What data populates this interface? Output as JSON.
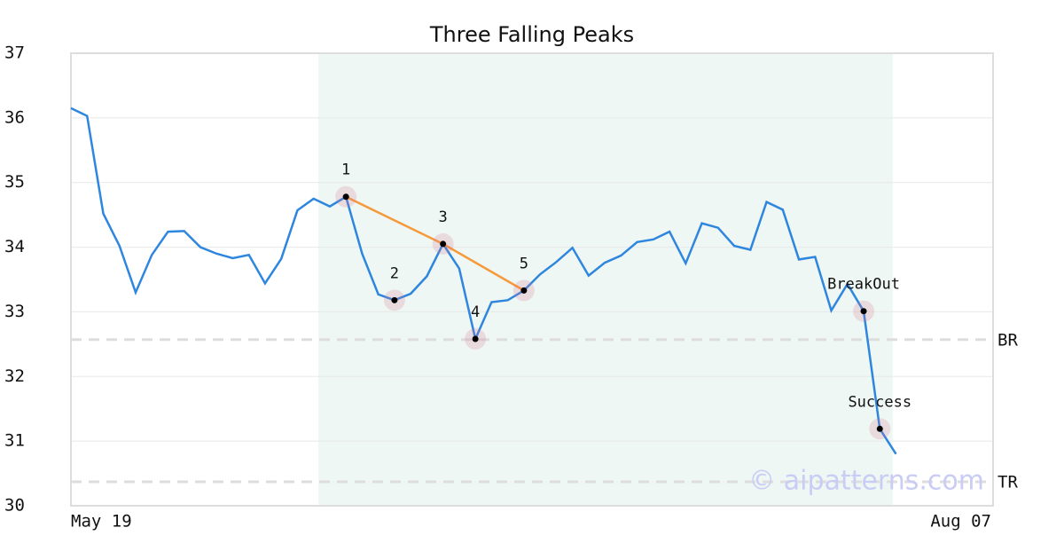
{
  "chart_data": {
    "type": "line",
    "title": "Three Falling Peaks",
    "x": [
      0,
      1,
      2,
      3,
      4,
      5,
      6,
      7,
      8,
      9,
      10,
      11,
      12,
      13,
      14,
      15,
      16,
      17,
      18,
      19,
      20,
      21,
      22,
      23,
      24,
      25,
      26,
      27,
      28,
      29,
      30,
      31,
      32,
      33,
      34,
      35,
      36,
      37,
      38,
      39,
      40,
      41,
      42,
      43,
      44,
      45,
      46,
      47,
      48,
      49,
      50,
      51
    ],
    "series": [
      {
        "color": "#2e86de",
        "values": [
          36.15,
          36.03,
          34.52,
          34.02,
          33.3,
          33.88,
          34.24,
          34.25,
          34.0,
          33.9,
          33.83,
          33.88,
          33.44,
          33.82,
          34.57,
          34.75,
          34.63,
          34.78,
          33.9,
          33.27,
          33.18,
          33.28,
          33.55,
          34.05,
          33.67,
          32.58,
          33.15,
          33.18,
          33.33,
          33.58,
          33.77,
          33.99,
          33.56,
          33.76,
          33.87,
          34.08,
          34.12,
          34.24,
          33.75,
          34.37,
          34.3,
          34.02,
          33.96,
          34.7,
          34.58,
          33.81,
          33.85,
          33.02,
          33.43,
          33.01,
          31.19,
          30.8
        ]
      }
    ],
    "xlim": [
      0,
      57
    ],
    "xticks": [
      {
        "value": 0,
        "label": "May 19"
      },
      {
        "value": 57,
        "label": "Aug 07"
      }
    ],
    "ylim": [
      30,
      37
    ],
    "yticks": [
      30,
      31,
      32,
      33,
      34,
      35,
      36,
      37
    ],
    "grid": true,
    "highlight": {
      "xlim": [
        15.3,
        50.8
      ],
      "color": "#eef7f3"
    },
    "trendline": {
      "color": "#f5993a",
      "x": [
        17,
        23,
        28
      ],
      "y": [
        34.78,
        34.05,
        33.33
      ]
    },
    "patterns": [
      {
        "label": "1",
        "x": 17,
        "y": 34.78
      },
      {
        "label": "2",
        "x": 20,
        "y": 33.18
      },
      {
        "label": "3",
        "x": 23,
        "y": 34.05
      },
      {
        "label": "4",
        "x": 25,
        "y": 32.58
      },
      {
        "label": "5",
        "x": 28,
        "y": 33.33
      },
      {
        "label": "BreakOut",
        "x": 49,
        "y": 33.01
      },
      {
        "label": "Success",
        "x": 50,
        "y": 31.19
      }
    ],
    "levels": [
      {
        "label": "BR",
        "value": 32.57
      },
      {
        "label": "TR",
        "value": 30.37
      }
    ],
    "watermark": "© aipatterns.com"
  }
}
